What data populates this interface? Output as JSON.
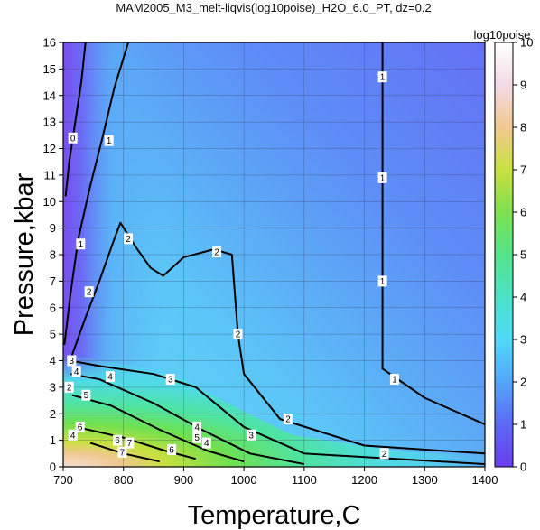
{
  "chart_data": {
    "type": "heatmap",
    "title": "MAM2005_M3_melt-liqvis(log10poise)_H2O_6.0_PT, dz=0.2",
    "xlabel": "Temperature,C",
    "ylabel": "Pressure,kbar",
    "xlim": [
      700,
      1400
    ],
    "ylim": [
      0,
      16
    ],
    "x_ticks": [
      "700",
      "800",
      "900",
      "1000",
      "1100",
      "1200",
      "1300",
      "1400"
    ],
    "y_ticks": [
      "0",
      "1",
      "2",
      "3",
      "4",
      "5",
      "6",
      "7",
      "8",
      "9",
      "10",
      "11",
      "12",
      "13",
      "14",
      "15",
      "16"
    ],
    "grid": true,
    "colorbar": {
      "label": "log10poise",
      "range": [
        0,
        10
      ],
      "ticks": [
        "0",
        "1",
        "2",
        "3",
        "4",
        "5",
        "6",
        "7",
        "8",
        "9",
        "10"
      ],
      "colors": [
        "#6a3df0",
        "#5c6af6",
        "#55a6fa",
        "#4fd9f7",
        "#4be3c8",
        "#53e38a",
        "#7fe050",
        "#c9e040",
        "#f0c890",
        "#f3dbe6",
        "#ffffff"
      ]
    },
    "contours": [
      {
        "label": "0",
        "points": [
          [
            704,
            10.2
          ],
          [
            710,
            11.5
          ],
          [
            720,
            13.0
          ],
          [
            730,
            14.5
          ],
          [
            737,
            16
          ]
        ],
        "label_at": [
          716,
          12.4
        ]
      },
      {
        "label": "1",
        "points": [
          [
            702,
            4.6
          ],
          [
            712,
            6.5
          ],
          [
            725,
            8.6
          ],
          [
            745,
            10.6
          ],
          [
            765,
            12.4
          ],
          [
            785,
            14.3
          ],
          [
            808,
            16
          ]
        ],
        "label_at": [
          776,
          12.3
        ]
      },
      {
        "label": "2",
        "points": [
          [
            713,
            4.1
          ],
          [
            735,
            5.5
          ],
          [
            760,
            7.0
          ],
          [
            785,
            8.6
          ],
          [
            795,
            9.2
          ],
          [
            820,
            8.3
          ],
          [
            845,
            7.5
          ],
          [
            866,
            7.2
          ],
          [
            900,
            7.9
          ],
          [
            950,
            8.2
          ],
          [
            980,
            8.0
          ],
          [
            985,
            6.5
          ],
          [
            990,
            5.0
          ],
          [
            1000,
            3.5
          ],
          [
            1060,
            1.8
          ],
          [
            1200,
            0.8
          ],
          [
            1400,
            0.5
          ]
        ],
        "label_at": [
          808,
          8.6
        ]
      },
      {
        "label": "1",
        "points": [
          [
            1230,
            16
          ],
          [
            1230,
            3.7
          ],
          [
            1300,
            2.6
          ],
          [
            1400,
            1.6
          ]
        ],
        "label_at": [
          1230,
          7.0
        ]
      },
      {
        "label": "3",
        "points": [
          [
            712,
            4.0
          ],
          [
            760,
            3.8
          ],
          [
            850,
            3.5
          ],
          [
            920,
            3.0
          ],
          [
            1000,
            1.5
          ],
          [
            1100,
            0.5
          ],
          [
            1400,
            0.1
          ]
        ],
        "label_at": [
          1012,
          1.2
        ]
      },
      {
        "label": "4",
        "points": [
          [
            712,
            3.5
          ],
          [
            760,
            3.3
          ],
          [
            850,
            2.4
          ],
          [
            930,
            1.4
          ],
          [
            1010,
            0.5
          ],
          [
            1100,
            0.1
          ]
        ],
        "label_at": [
          922,
          1.5
        ]
      },
      {
        "label": "5",
        "points": [
          [
            715,
            2.7
          ],
          [
            780,
            2.3
          ],
          [
            860,
            1.4
          ],
          [
            940,
            0.6
          ],
          [
            1000,
            0.2
          ]
        ],
        "label_at": [
          738,
          2.7
        ]
      },
      {
        "label": "6",
        "points": [
          [
            722,
            1.5
          ],
          [
            800,
            1.1
          ],
          [
            870,
            0.6
          ],
          [
            920,
            0.3
          ]
        ],
        "label_at": [
          880,
          0.65
        ]
      },
      {
        "label": "7",
        "points": [
          [
            745,
            0.9
          ],
          [
            800,
            0.5
          ],
          [
            860,
            0.2
          ]
        ],
        "label_at": [
          798,
          0.55
        ]
      }
    ],
    "extra_labels": [
      {
        "label": "1",
        "at": [
          1230,
          14.7
        ]
      },
      {
        "label": "1",
        "at": [
          1230,
          10.9
        ]
      },
      {
        "label": "2",
        "at": [
          955,
          8.1
        ]
      },
      {
        "label": "2",
        "at": [
          743,
          6.6
        ]
      },
      {
        "label": "1",
        "at": [
          729,
          8.4
        ]
      },
      {
        "label": "2",
        "at": [
          990,
          5.0
        ]
      },
      {
        "label": "2",
        "at": [
          1073,
          1.8
        ]
      },
      {
        "label": "2",
        "at": [
          1233,
          0.5
        ]
      },
      {
        "label": "1",
        "at": [
          1250,
          3.3
        ]
      },
      {
        "label": "3",
        "at": [
          714,
          4.0
        ]
      },
      {
        "label": "3",
        "at": [
          878,
          3.3
        ]
      },
      {
        "label": "4",
        "at": [
          778,
          3.4
        ]
      },
      {
        "label": "4",
        "at": [
          722,
          3.6
        ]
      },
      {
        "label": "2",
        "at": [
          710,
          3.0
        ]
      },
      {
        "label": "4",
        "at": [
          938,
          0.9
        ]
      },
      {
        "label": "5",
        "at": [
          922,
          1.1
        ]
      },
      {
        "label": "6",
        "at": [
          728,
          1.5
        ]
      },
      {
        "label": "6",
        "at": [
          790,
          1.0
        ]
      },
      {
        "label": "7",
        "at": [
          810,
          0.9
        ]
      },
      {
        "label": "4",
        "at": [
          716,
          1.2
        ]
      }
    ]
  }
}
